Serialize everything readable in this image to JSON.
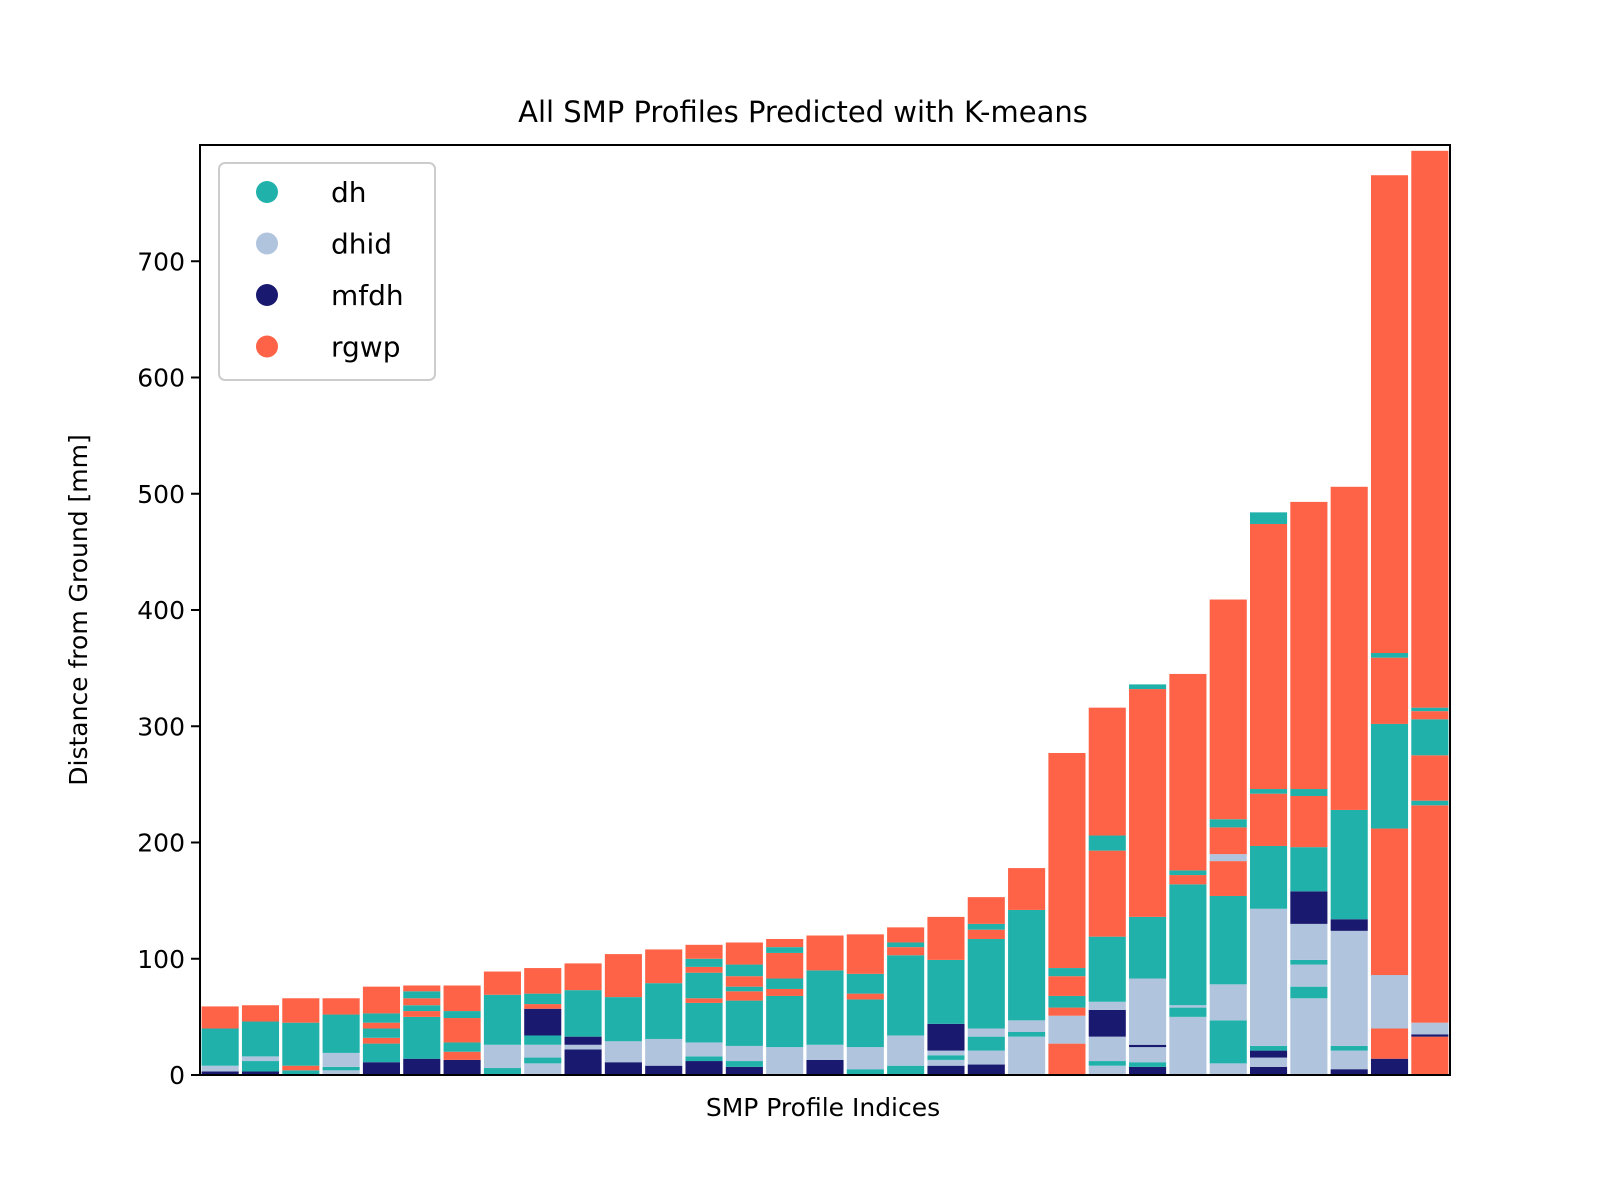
{
  "chart_data": {
    "type": "bar",
    "stacked": true,
    "title": "All SMP Profiles Predicted with K-means",
    "xlabel": "SMP Profile Indices",
    "ylabel": "Distance from Ground [mm]",
    "ylim": [
      0,
      800
    ],
    "yticks": [
      0,
      100,
      200,
      300,
      400,
      500,
      600,
      700
    ],
    "x_tick_labels": false,
    "legend_position": "upper-left",
    "classes": [
      {
        "name": "dh",
        "color": "#20b2aa"
      },
      {
        "name": "dhid",
        "color": "#b0c4de"
      },
      {
        "name": "mfdh",
        "color": "#191970"
      },
      {
        "name": "rgwp",
        "color": "#ff6347"
      }
    ],
    "profiles": [
      {
        "total": 59,
        "segments": [
          [
            "mfdh",
            0,
            3
          ],
          [
            "dhid",
            3,
            8
          ],
          [
            "dh",
            8,
            40
          ],
          [
            "rgwp",
            40,
            59
          ]
        ]
      },
      {
        "total": 60,
        "segments": [
          [
            "mfdh",
            0,
            3
          ],
          [
            "dh",
            3,
            12
          ],
          [
            "dhid",
            12,
            16
          ],
          [
            "dh",
            16,
            46
          ],
          [
            "rgwp",
            46,
            60
          ]
        ]
      },
      {
        "total": 66,
        "segments": [
          [
            "dh",
            0,
            4
          ],
          [
            "rgwp",
            4,
            8
          ],
          [
            "dh",
            8,
            45
          ],
          [
            "rgwp",
            45,
            66
          ]
        ]
      },
      {
        "total": 66,
        "segments": [
          [
            "dhid",
            0,
            4
          ],
          [
            "dh",
            4,
            7
          ],
          [
            "dhid",
            7,
            19
          ],
          [
            "dh",
            19,
            52
          ],
          [
            "rgwp",
            52,
            66
          ]
        ]
      },
      {
        "total": 76,
        "segments": [
          [
            "mfdh",
            0,
            11
          ],
          [
            "dh",
            11,
            27
          ],
          [
            "rgwp",
            27,
            32
          ],
          [
            "dh",
            32,
            40
          ],
          [
            "rgwp",
            40,
            45
          ],
          [
            "dh",
            45,
            53
          ],
          [
            "rgwp",
            53,
            76
          ]
        ]
      },
      {
        "total": 77,
        "segments": [
          [
            "mfdh",
            0,
            14
          ],
          [
            "dh",
            14,
            50
          ],
          [
            "rgwp",
            50,
            55
          ],
          [
            "dh",
            55,
            60
          ],
          [
            "rgwp",
            60,
            66
          ],
          [
            "dh",
            66,
            72
          ],
          [
            "rgwp",
            72,
            77
          ]
        ]
      },
      {
        "total": 77,
        "segments": [
          [
            "mfdh",
            0,
            13
          ],
          [
            "rgwp",
            13,
            20
          ],
          [
            "dh",
            20,
            28
          ],
          [
            "rgwp",
            28,
            49
          ],
          [
            "dh",
            49,
            55
          ],
          [
            "rgwp",
            55,
            77
          ]
        ]
      },
      {
        "total": 89,
        "segments": [
          [
            "dh",
            0,
            6
          ],
          [
            "dhid",
            6,
            26
          ],
          [
            "dh",
            26,
            69
          ],
          [
            "rgwp",
            69,
            89
          ]
        ]
      },
      {
        "total": 92,
        "segments": [
          [
            "dhid",
            0,
            10
          ],
          [
            "dh",
            10,
            15
          ],
          [
            "dhid",
            15,
            26
          ],
          [
            "dh",
            26,
            34
          ],
          [
            "mfdh",
            34,
            57
          ],
          [
            "rgwp",
            57,
            61
          ],
          [
            "dh",
            61,
            70
          ],
          [
            "rgwp",
            70,
            92
          ]
        ]
      },
      {
        "total": 96,
        "segments": [
          [
            "mfdh",
            0,
            22
          ],
          [
            "dhid",
            22,
            26
          ],
          [
            "mfdh",
            26,
            33
          ],
          [
            "dh",
            33,
            73
          ],
          [
            "rgwp",
            73,
            96
          ]
        ]
      },
      {
        "total": 104,
        "segments": [
          [
            "mfdh",
            0,
            11
          ],
          [
            "dhid",
            11,
            29
          ],
          [
            "dh",
            29,
            67
          ],
          [
            "rgwp",
            67,
            104
          ]
        ]
      },
      {
        "total": 108,
        "segments": [
          [
            "mfdh",
            0,
            8
          ],
          [
            "dhid",
            8,
            31
          ],
          [
            "dh",
            31,
            79
          ],
          [
            "rgwp",
            79,
            108
          ]
        ]
      },
      {
        "total": 112,
        "segments": [
          [
            "mfdh",
            0,
            12
          ],
          [
            "dh",
            12,
            16
          ],
          [
            "dhid",
            16,
            28
          ],
          [
            "dh",
            28,
            62
          ],
          [
            "rgwp",
            62,
            66
          ],
          [
            "dh",
            66,
            88
          ],
          [
            "rgwp",
            88,
            93
          ],
          [
            "dh",
            93,
            100
          ],
          [
            "rgwp",
            100,
            112
          ]
        ]
      },
      {
        "total": 114,
        "segments": [
          [
            "mfdh",
            0,
            7
          ],
          [
            "dh",
            7,
            12
          ],
          [
            "dhid",
            12,
            25
          ],
          [
            "dh",
            25,
            64
          ],
          [
            "rgwp",
            64,
            72
          ],
          [
            "dh",
            72,
            76
          ],
          [
            "rgwp",
            76,
            85
          ],
          [
            "dh",
            85,
            95
          ],
          [
            "rgwp",
            95,
            114
          ]
        ]
      },
      {
        "total": 117,
        "segments": [
          [
            "dhid",
            0,
            24
          ],
          [
            "dh",
            24,
            68
          ],
          [
            "rgwp",
            68,
            74
          ],
          [
            "dh",
            74,
            83
          ],
          [
            "rgwp",
            83,
            105
          ],
          [
            "dh",
            105,
            110
          ],
          [
            "rgwp",
            110,
            117
          ]
        ]
      },
      {
        "total": 120,
        "segments": [
          [
            "mfdh",
            0,
            13
          ],
          [
            "dhid",
            13,
            26
          ],
          [
            "dh",
            26,
            90
          ],
          [
            "rgwp",
            90,
            120
          ]
        ]
      },
      {
        "total": 121,
        "segments": [
          [
            "dh",
            0,
            5
          ],
          [
            "dhid",
            5,
            24
          ],
          [
            "dh",
            24,
            65
          ],
          [
            "rgwp",
            65,
            70
          ],
          [
            "dh",
            70,
            87
          ],
          [
            "rgwp",
            87,
            121
          ]
        ]
      },
      {
        "total": 127,
        "segments": [
          [
            "dh",
            0,
            8
          ],
          [
            "dhid",
            8,
            34
          ],
          [
            "dh",
            34,
            103
          ],
          [
            "rgwp",
            103,
            110
          ],
          [
            "dh",
            110,
            114
          ],
          [
            "rgwp",
            114,
            127
          ]
        ]
      },
      {
        "total": 136,
        "segments": [
          [
            "mfdh",
            0,
            8
          ],
          [
            "dhid",
            8,
            13
          ],
          [
            "dh",
            13,
            17
          ],
          [
            "dhid",
            17,
            21
          ],
          [
            "mfdh",
            21,
            44
          ],
          [
            "dh",
            44,
            99
          ],
          [
            "rgwp",
            99,
            136
          ]
        ]
      },
      {
        "total": 153,
        "segments": [
          [
            "mfdh",
            0,
            9
          ],
          [
            "dhid",
            9,
            21
          ],
          [
            "dh",
            21,
            33
          ],
          [
            "dhid",
            33,
            40
          ],
          [
            "dh",
            40,
            117
          ],
          [
            "rgwp",
            117,
            125
          ],
          [
            "dh",
            125,
            130
          ],
          [
            "rgwp",
            130,
            153
          ]
        ]
      },
      {
        "total": 178,
        "segments": [
          [
            "dhid",
            0,
            33
          ],
          [
            "dh",
            33,
            37
          ],
          [
            "dhid",
            37,
            47
          ],
          [
            "dh",
            47,
            142
          ],
          [
            "rgwp",
            142,
            178
          ]
        ]
      },
      {
        "total": 277,
        "segments": [
          [
            "rgwp",
            0,
            27
          ],
          [
            "dhid",
            27,
            51
          ],
          [
            "rgwp",
            51,
            58
          ],
          [
            "dh",
            58,
            68
          ],
          [
            "rgwp",
            68,
            85
          ],
          [
            "dh",
            85,
            92
          ],
          [
            "rgwp",
            92,
            277
          ]
        ]
      },
      {
        "total": 316,
        "segments": [
          [
            "dhid",
            0,
            8
          ],
          [
            "dh",
            8,
            12
          ],
          [
            "dhid",
            12,
            33
          ],
          [
            "mfdh",
            33,
            56
          ],
          [
            "dhid",
            56,
            63
          ],
          [
            "dh",
            63,
            119
          ],
          [
            "rgwp",
            119,
            193
          ],
          [
            "dh",
            193,
            206
          ],
          [
            "rgwp",
            206,
            316
          ]
        ]
      },
      {
        "total": 336,
        "segments": [
          [
            "mfdh",
            0,
            7
          ],
          [
            "dh",
            7,
            11
          ],
          [
            "dhid",
            11,
            24
          ],
          [
            "mfdh",
            24,
            26
          ],
          [
            "dhid",
            26,
            83
          ],
          [
            "dh",
            83,
            136
          ],
          [
            "rgwp",
            136,
            332
          ],
          [
            "dh",
            332,
            336
          ]
        ]
      },
      {
        "total": 345,
        "segments": [
          [
            "dhid",
            0,
            50
          ],
          [
            "dh",
            50,
            58
          ],
          [
            "dhid",
            58,
            60
          ],
          [
            "dh",
            60,
            164
          ],
          [
            "rgwp",
            164,
            172
          ],
          [
            "dh",
            172,
            176
          ],
          [
            "rgwp",
            176,
            345
          ]
        ]
      },
      {
        "total": 409,
        "segments": [
          [
            "dhid",
            0,
            10
          ],
          [
            "dh",
            10,
            47
          ],
          [
            "dhid",
            47,
            78
          ],
          [
            "dh",
            78,
            154
          ],
          [
            "rgwp",
            154,
            184
          ],
          [
            "dhid",
            184,
            190
          ],
          [
            "rgwp",
            190,
            213
          ],
          [
            "dh",
            213,
            220
          ],
          [
            "rgwp",
            220,
            409
          ]
        ]
      },
      {
        "total": 484,
        "segments": [
          [
            "mfdh",
            0,
            7
          ],
          [
            "dhid",
            7,
            15
          ],
          [
            "mfdh",
            15,
            21
          ],
          [
            "dh",
            21,
            25
          ],
          [
            "dhid",
            25,
            143
          ],
          [
            "dh",
            143,
            197
          ],
          [
            "rgwp",
            197,
            242
          ],
          [
            "dh",
            242,
            246
          ],
          [
            "rgwp",
            246,
            474
          ],
          [
            "dh",
            474,
            484
          ]
        ]
      },
      {
        "total": 493,
        "segments": [
          [
            "dhid",
            0,
            66
          ],
          [
            "dh",
            66,
            76
          ],
          [
            "dhid",
            76,
            95
          ],
          [
            "dh",
            95,
            99
          ],
          [
            "dhid",
            99,
            130
          ],
          [
            "mfdh",
            130,
            158
          ],
          [
            "dh",
            158,
            196
          ],
          [
            "rgwp",
            196,
            240
          ],
          [
            "dh",
            240,
            246
          ],
          [
            "rgwp",
            246,
            493
          ]
        ]
      },
      {
        "total": 506,
        "segments": [
          [
            "mfdh",
            0,
            5
          ],
          [
            "dhid",
            5,
            21
          ],
          [
            "dh",
            21,
            25
          ],
          [
            "dhid",
            25,
            124
          ],
          [
            "mfdh",
            124,
            134
          ],
          [
            "dh",
            134,
            228
          ],
          [
            "rgwp",
            228,
            506
          ]
        ]
      },
      {
        "total": 774,
        "segments": [
          [
            "mfdh",
            0,
            14
          ],
          [
            "rgwp",
            14,
            40
          ],
          [
            "dhid",
            40,
            86
          ],
          [
            "rgwp",
            86,
            212
          ],
          [
            "dh",
            212,
            302
          ],
          [
            "rgwp",
            302,
            359
          ],
          [
            "dh",
            359,
            363
          ],
          [
            "rgwp",
            363,
            774
          ]
        ]
      },
      {
        "total": 795,
        "segments": [
          [
            "rgwp",
            0,
            33
          ],
          [
            "mfdh",
            33,
            35
          ],
          [
            "dhid",
            35,
            45
          ],
          [
            "rgwp",
            45,
            232
          ],
          [
            "dh",
            232,
            236
          ],
          [
            "rgwp",
            236,
            275
          ],
          [
            "dh",
            275,
            306
          ],
          [
            "rgwp",
            306,
            313
          ],
          [
            "dh",
            313,
            316
          ],
          [
            "rgwp",
            316,
            795
          ]
        ]
      }
    ]
  }
}
